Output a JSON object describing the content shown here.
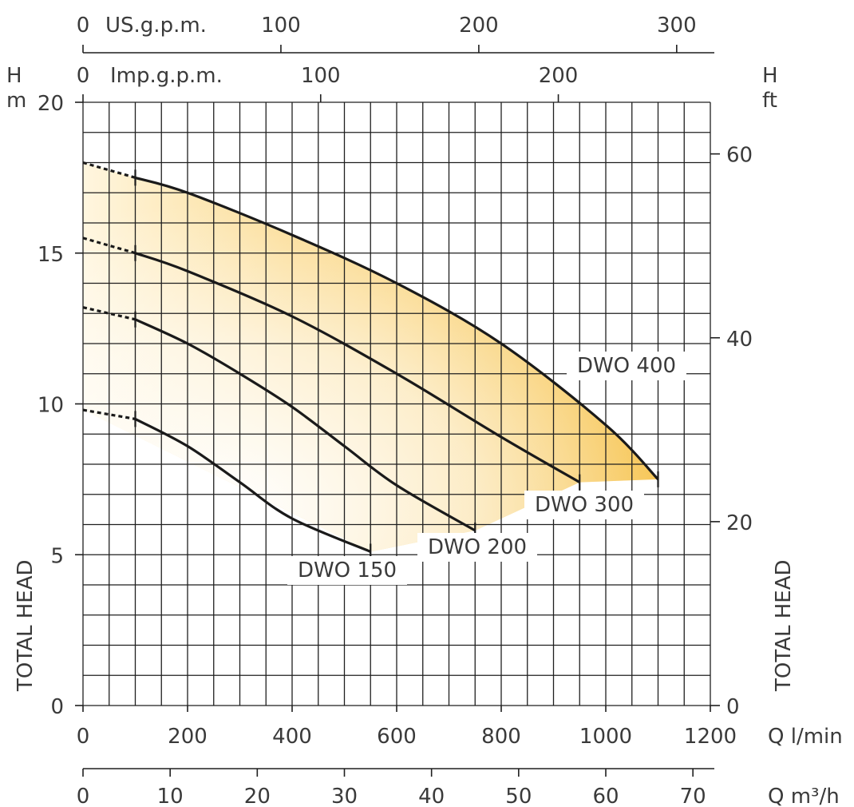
{
  "chart_data": {
    "type": "line",
    "x_unit_primary": "Q l/min",
    "x_unit_secondary": "Q m³/h",
    "top_axis_1": "US.g.p.m.",
    "top_axis_2": "Imp.g.p.m.",
    "y_left_unit": [
      "H",
      "m"
    ],
    "y_right_unit": [
      "H",
      "ft"
    ],
    "y_left_title": "TOTAL HEAD",
    "y_right_title": "TOTAL HEAD",
    "xlim": [
      0,
      1200
    ],
    "ylim": [
      0,
      20
    ],
    "x_ticks_lmin": [
      "0",
      "200",
      "400",
      "600",
      "800",
      "1000",
      "1200"
    ],
    "x_ticks_m3h": [
      "0",
      "10",
      "20",
      "30",
      "40",
      "50",
      "60",
      "70"
    ],
    "top_ticks_usgpm": [
      "0",
      "100",
      "200",
      "300"
    ],
    "top_ticks_impgpm": [
      "0",
      "100",
      "200"
    ],
    "y_ticks_m": [
      "0",
      "5",
      "10",
      "15",
      "20"
    ],
    "y_ticks_ft": [
      "0",
      "20",
      "40",
      "60"
    ],
    "grid": true,
    "series": [
      {
        "name": "DWO 150",
        "x": [
          0,
          100,
          200,
          300,
          400,
          550
        ],
        "y": [
          9.8,
          9.5,
          8.6,
          7.4,
          6.2,
          5.1
        ]
      },
      {
        "name": "DWO 200",
        "x": [
          0,
          100,
          200,
          300,
          400,
          500,
          600,
          750
        ],
        "y": [
          13.2,
          12.8,
          12.0,
          11.0,
          9.9,
          8.6,
          7.3,
          5.8
        ]
      },
      {
        "name": "DWO 300",
        "x": [
          0,
          100,
          200,
          400,
          600,
          800,
          950
        ],
        "y": [
          15.5,
          15.0,
          14.4,
          12.9,
          11.0,
          8.9,
          7.4
        ]
      },
      {
        "name": "DWO 400",
        "x": [
          0,
          100,
          200,
          400,
          600,
          800,
          1000,
          1100
        ],
        "y": [
          18.0,
          17.5,
          17.0,
          15.6,
          14.0,
          12.0,
          9.3,
          7.5
        ]
      }
    ],
    "fill_color": "#f5c54e",
    "line_color": "#1a1a1a"
  }
}
